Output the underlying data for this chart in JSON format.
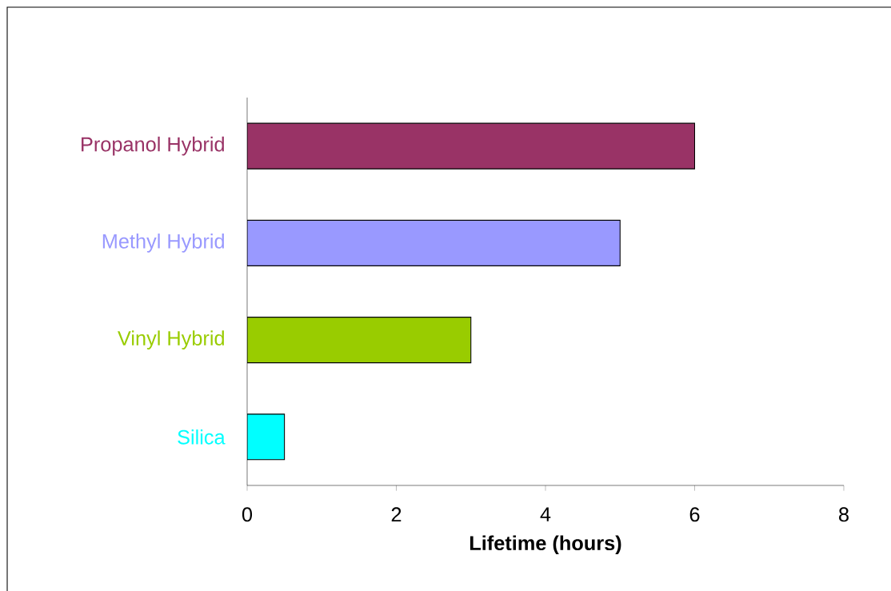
{
  "chart_data": {
    "type": "bar",
    "orientation": "horizontal",
    "xlabel": "Lifetime (hours)",
    "categories": [
      "Propanol Hybrid",
      "Methyl Hybrid",
      "Vinyl Hybrid",
      "Silica"
    ],
    "values": [
      6,
      5,
      3,
      0.5
    ],
    "colors": [
      "#993366",
      "#9999ff",
      "#99cc00",
      "#00ffff"
    ],
    "xlim": [
      0,
      8
    ],
    "xticks": [
      0,
      2,
      4,
      6,
      8
    ],
    "grid": false
  }
}
